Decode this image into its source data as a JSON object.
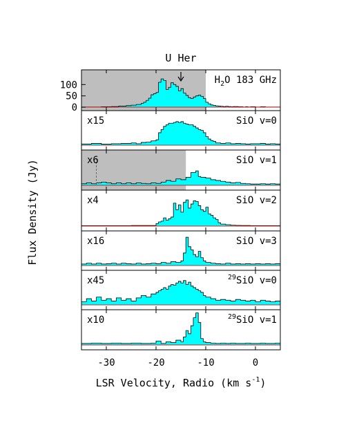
{
  "chart_data": {
    "type": "step-spectrum",
    "title": "U Her",
    "xlabel": "LSR Velocity, Radio (km s",
    "xlabel_sup": "-1",
    "xlabel_tail": ")",
    "ylabel": "Flux Density (Jy)",
    "xlim": [
      -35,
      5
    ],
    "xticks": [
      -30,
      -20,
      -10,
      0
    ],
    "xticklabels": [
      "-30",
      "-20",
      "-10",
      "0"
    ],
    "fill_color": "#00ffff",
    "shade_color": "#bebebe",
    "arrow_velocity": -15,
    "panels": [
      {
        "pre": "H",
        "sub": "2",
        "post": "O 183 GHz",
        "sup": "",
        "scale": "",
        "shade": [
          -35,
          -10
        ],
        "ylim": [
          -15,
          165
        ],
        "yticks": [
          0,
          50,
          100
        ],
        "yticklabels": [
          "0",
          "50",
          "100"
        ],
        "baseline_dash": false,
        "x": [
          -35,
          -31,
          -29,
          -27.5,
          -26,
          -25,
          -24,
          -23,
          -22.5,
          -22,
          -21.5,
          -21,
          -20.5,
          -20,
          -19.5,
          -19,
          -18.5,
          -18,
          -17.5,
          -17,
          -16.5,
          -16,
          -15.5,
          -15,
          -14.5,
          -14,
          -13.5,
          -13,
          -12.5,
          -12,
          -11.5,
          -11,
          -10.5,
          -10,
          -9.5,
          -9,
          -8.5,
          -8,
          -7.5,
          -7,
          -6.5,
          -6,
          -5.5,
          -5,
          -4.5,
          -4,
          -3.5,
          -3,
          -2.5,
          -2,
          -1.5,
          -1,
          0,
          1,
          2,
          3,
          4,
          4.5
        ],
        "y": [
          1,
          2,
          3,
          5,
          7,
          9,
          12,
          17,
          22,
          30,
          40,
          55,
          60,
          65,
          110,
          125,
          118,
          78,
          88,
          108,
          100,
          92,
          72,
          82,
          62,
          52,
          42,
          38,
          45,
          50,
          53,
          48,
          38,
          22,
          15,
          10,
          8,
          6,
          5,
          4,
          3,
          4,
          3,
          2,
          3,
          3,
          2,
          2,
          1,
          2,
          1,
          2,
          1,
          2,
          1,
          1,
          1,
          1
        ]
      },
      {
        "pre": "SiO v=0",
        "sub": "",
        "post": "",
        "sup": "",
        "scale": "x15",
        "shade": null,
        "ylim": [
          -0.3,
          2.2
        ],
        "yticks": [],
        "yticklabels": [],
        "baseline_dash": false,
        "x": [
          -35,
          -33,
          -31,
          -29,
          -27,
          -25,
          -24,
          -23,
          -22,
          -21,
          -20,
          -19.5,
          -19,
          -18.5,
          -18,
          -17.5,
          -17,
          -16.5,
          -16,
          -15.5,
          -15,
          -14.5,
          -14,
          -13.5,
          -13,
          -12.5,
          -12,
          -11.5,
          -11,
          -10.5,
          -10,
          -9.5,
          -9,
          -8.5,
          -8,
          -7,
          -6,
          -5,
          -4,
          -3,
          -2,
          -1,
          0,
          1,
          2,
          3,
          4
        ],
        "y": [
          0.08,
          0.12,
          0.07,
          0.1,
          0.12,
          0.15,
          0.1,
          0.18,
          0.2,
          0.28,
          0.35,
          0.8,
          1.0,
          1.2,
          1.3,
          1.4,
          1.4,
          1.45,
          1.5,
          1.45,
          1.5,
          1.4,
          1.35,
          1.3,
          1.3,
          1.2,
          1.1,
          1.0,
          0.95,
          0.8,
          0.55,
          0.4,
          0.3,
          0.25,
          0.15,
          0.12,
          0.15,
          0.1,
          0.12,
          0.1,
          0.08,
          0.1,
          0.1,
          0.12,
          0.08,
          0.1,
          0.08
        ]
      },
      {
        "pre": "SiO v=1",
        "sub": "",
        "post": "",
        "sup": "",
        "scale": "x6",
        "shade": [
          -35,
          -14
        ],
        "ylim": [
          -0.3,
          2.2
        ],
        "yticks": [],
        "yticklabels": [],
        "baseline_dash": true,
        "x": [
          -35,
          -34,
          -33,
          -32,
          -31,
          -30,
          -29,
          -28,
          -27,
          -26,
          -25,
          -24,
          -23,
          -22,
          -21,
          -20,
          -19,
          -18,
          -17,
          -16,
          -15,
          -14,
          -13,
          -12,
          -11.5,
          -11,
          -10,
          -9,
          -8,
          -7,
          -6,
          -5,
          -4,
          -3,
          -2,
          -1,
          0,
          1,
          2,
          3,
          4
        ],
        "y": [
          0.1,
          0.15,
          0.1,
          0.15,
          0.2,
          0.15,
          0.1,
          0.15,
          0.1,
          0.15,
          0.1,
          0.15,
          0.12,
          0.1,
          0.15,
          0.12,
          0.2,
          0.3,
          0.25,
          0.4,
          0.35,
          0.5,
          0.8,
          0.9,
          0.55,
          0.5,
          0.45,
          0.35,
          0.3,
          0.25,
          0.2,
          0.15,
          0.18,
          0.12,
          0.1,
          0.08,
          0.08,
          0.1,
          0.08,
          0.1,
          0.08
        ]
      },
      {
        "pre": "SiO v=2",
        "sub": "",
        "post": "",
        "sup": "",
        "scale": "x4",
        "shade": null,
        "ylim": [
          -0.3,
          2.2
        ],
        "yticks": [],
        "yticklabels": [],
        "baseline_dash": false,
        "x": [
          -35,
          -30,
          -25,
          -20,
          -19.5,
          -19,
          -18.5,
          -18,
          -17.5,
          -17,
          -16.5,
          -16,
          -15.5,
          -15,
          -14.5,
          -14,
          -13.5,
          -13,
          -12.5,
          -12,
          -11.5,
          -11,
          -10.5,
          -10,
          -9.5,
          -9,
          -8.5,
          -8,
          -7.5,
          -7,
          -6,
          -5,
          -4,
          -3,
          -2,
          -1,
          0,
          1,
          2,
          3,
          4
        ],
        "y": [
          0.02,
          0.02,
          0.03,
          0.15,
          0.25,
          0.3,
          0.5,
          0.35,
          0.45,
          0.55,
          1.4,
          1.0,
          1.3,
          0.85,
          1.45,
          1.6,
          1.1,
          1.35,
          1.55,
          1.5,
          1.25,
          1.0,
          0.9,
          1.15,
          0.75,
          0.65,
          0.5,
          0.4,
          0.2,
          0.12,
          0.08,
          0.05,
          0.04,
          0.03,
          0.03,
          0.02,
          0.02,
          0.02,
          0.02,
          0.02,
          0.02
        ]
      },
      {
        "pre": "SiO v=3",
        "sub": "",
        "post": "",
        "sup": "",
        "scale": "x16",
        "shade": null,
        "ylim": [
          -0.3,
          2.2
        ],
        "yticks": [],
        "yticklabels": [],
        "baseline_dash": false,
        "x": [
          -35,
          -34,
          -33,
          -32,
          -31,
          -30,
          -29,
          -28,
          -27,
          -26,
          -25,
          -24,
          -23,
          -22,
          -21,
          -20,
          -19,
          -18,
          -17,
          -16,
          -15,
          -14.5,
          -14,
          -13.5,
          -13,
          -12.5,
          -12,
          -11.5,
          -11,
          -10.5,
          -10,
          -9,
          -8,
          -7,
          -6,
          -5,
          -4,
          -3,
          -2,
          -1,
          0,
          1,
          2,
          3,
          4
        ],
        "y": [
          0.1,
          0.15,
          0.1,
          0.15,
          0.1,
          0.12,
          0.15,
          0.1,
          0.15,
          0.12,
          0.1,
          0.15,
          0.1,
          0.12,
          0.15,
          0.12,
          0.2,
          0.15,
          0.25,
          0.2,
          0.3,
          0.8,
          1.8,
          1.2,
          1.0,
          0.7,
          0.55,
          0.9,
          0.5,
          0.3,
          0.2,
          0.15,
          0.12,
          0.1,
          0.15,
          0.1,
          0.12,
          0.1,
          0.12,
          0.1,
          0.12,
          0.1,
          0.12,
          0.1,
          0.12
        ]
      },
      {
        "pre": "SiO v=0",
        "sub": "",
        "post": "",
        "sup": "29",
        "scale": "x45",
        "shade": null,
        "ylim": [
          -0.3,
          2.2
        ],
        "yticks": [],
        "yticklabels": [],
        "baseline_dash": false,
        "x": [
          -35,
          -34,
          -33,
          -32,
          -31,
          -30,
          -29,
          -28,
          -27,
          -26,
          -25,
          -24,
          -23,
          -22,
          -21,
          -20,
          -19.5,
          -19,
          -18.5,
          -18,
          -17.5,
          -17,
          -16.5,
          -16,
          -15.5,
          -15,
          -14.5,
          -14,
          -13.5,
          -13,
          -12.5,
          -12,
          -11.5,
          -11,
          -10.5,
          -10,
          -9,
          -8,
          -7,
          -6,
          -5,
          -4,
          -3,
          -2,
          -1,
          0,
          1,
          2,
          3,
          4
        ],
        "y": [
          0.2,
          0.4,
          0.25,
          0.5,
          0.3,
          0.4,
          0.25,
          0.45,
          0.3,
          0.4,
          0.25,
          0.45,
          0.6,
          0.5,
          0.7,
          0.8,
          0.9,
          1.0,
          1.1,
          1.0,
          1.2,
          1.3,
          1.25,
          1.4,
          1.5,
          1.4,
          1.55,
          1.3,
          1.45,
          1.2,
          1.1,
          1.0,
          0.9,
          0.8,
          0.6,
          0.5,
          0.4,
          0.3,
          0.35,
          0.3,
          0.25,
          0.35,
          0.3,
          0.25,
          0.3,
          0.2,
          0.3,
          0.25,
          0.2,
          0.25
        ]
      },
      {
        "pre": "SiO v=1",
        "sub": "",
        "post": "",
        "sup": "29",
        "scale": "x10",
        "shade": null,
        "ylim": [
          -0.3,
          2.2
        ],
        "yticks": [],
        "yticklabels": [],
        "baseline_dash": false,
        "x": [
          -35,
          -33,
          -31,
          -29,
          -27,
          -25,
          -23,
          -21,
          -20,
          -19,
          -18,
          -17,
          -16,
          -15,
          -14.5,
          -14,
          -13.5,
          -13,
          -12.5,
          -12,
          -11.5,
          -11,
          -10.5,
          -10,
          -9,
          -8,
          -7,
          -6,
          -5,
          -4,
          -3,
          -2,
          -1,
          0,
          1,
          2,
          3,
          4
        ],
        "y": [
          0.1,
          0.12,
          0.1,
          0.12,
          0.1,
          0.12,
          0.1,
          0.12,
          0.25,
          0.1,
          0.2,
          0.15,
          0.3,
          0.2,
          0.5,
          0.9,
          0.7,
          1.2,
          1.7,
          2.0,
          1.4,
          0.4,
          0.2,
          0.15,
          0.12,
          0.1,
          0.12,
          0.1,
          0.12,
          0.1,
          0.1,
          0.12,
          0.1,
          0.1,
          0.12,
          0.1,
          0.1,
          0.12
        ]
      }
    ]
  }
}
